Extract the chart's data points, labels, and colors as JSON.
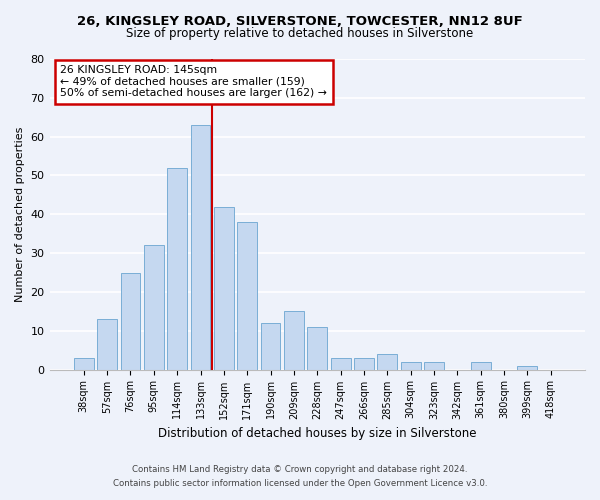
{
  "title_line1": "26, KINGSLEY ROAD, SILVERSTONE, TOWCESTER, NN12 8UF",
  "title_line2": "Size of property relative to detached houses in Silverstone",
  "xlabel": "Distribution of detached houses by size in Silverstone",
  "ylabel": "Number of detached properties",
  "bar_labels": [
    "38sqm",
    "57sqm",
    "76sqm",
    "95sqm",
    "114sqm",
    "133sqm",
    "152sqm",
    "171sqm",
    "190sqm",
    "209sqm",
    "228sqm",
    "247sqm",
    "266sqm",
    "285sqm",
    "304sqm",
    "323sqm",
    "342sqm",
    "361sqm",
    "380sqm",
    "399sqm",
    "418sqm"
  ],
  "bar_values": [
    3,
    13,
    25,
    32,
    52,
    63,
    42,
    38,
    12,
    15,
    11,
    3,
    3,
    4,
    2,
    2,
    0,
    2,
    0,
    1,
    0
  ],
  "bar_color": "#c5d8f0",
  "bar_edge_color": "#7aaed6",
  "vline_x": 5.5,
  "vline_color": "#cc0000",
  "ylim": [
    0,
    80
  ],
  "yticks": [
    0,
    10,
    20,
    30,
    40,
    50,
    60,
    70,
    80
  ],
  "annotation_title": "26 KINGSLEY ROAD: 145sqm",
  "annotation_line1": "← 49% of detached houses are smaller (159)",
  "annotation_line2": "50% of semi-detached houses are larger (162) →",
  "annotation_box_color": "#ffffff",
  "annotation_box_edge": "#cc0000",
  "footnote1": "Contains HM Land Registry data © Crown copyright and database right 2024.",
  "footnote2": "Contains public sector information licensed under the Open Government Licence v3.0.",
  "bg_color": "#eef2fa",
  "plot_bg_color": "#eef2fa",
  "grid_color": "#ffffff"
}
